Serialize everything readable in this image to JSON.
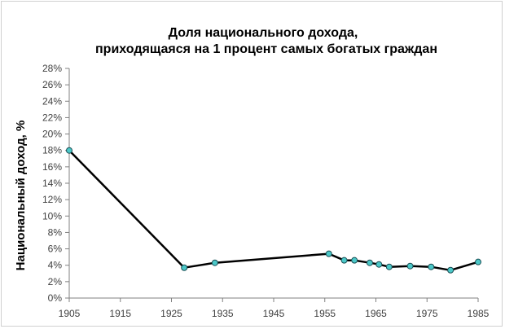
{
  "chart_data": {
    "type": "line",
    "title": [
      "Доля национального дохода,",
      "приходящаяся на 1 процент самых богатых граждан"
    ],
    "xlabel": "",
    "ylabel": "Национальный доход, %",
    "xlim": [
      1905,
      1985
    ],
    "ylim": [
      0,
      28
    ],
    "x_ticks": [
      1905,
      1915,
      1925,
      1935,
      1945,
      1955,
      1965,
      1975,
      1985
    ],
    "y_ticks": [
      0,
      2,
      4,
      6,
      8,
      10,
      12,
      14,
      16,
      18,
      20,
      22,
      24,
      26,
      28
    ],
    "y_tick_suffix": "%",
    "grid": false,
    "legend": "none",
    "series": [
      {
        "line_color": "#000000",
        "marker_color": "#4bc8c8",
        "points": [
          {
            "x": 1905,
            "y": 18.0
          },
          {
            "x": 1927.5,
            "y": 3.7
          },
          {
            "x": 1933.5,
            "y": 4.3
          },
          {
            "x": 1955.8,
            "y": 5.4
          },
          {
            "x": 1958.8,
            "y": 4.6
          },
          {
            "x": 1960.8,
            "y": 4.6
          },
          {
            "x": 1963.8,
            "y": 4.3
          },
          {
            "x": 1965.6,
            "y": 4.1
          },
          {
            "x": 1967.6,
            "y": 3.8
          },
          {
            "x": 1971.7,
            "y": 3.9
          },
          {
            "x": 1975.8,
            "y": 3.8
          },
          {
            "x": 1979.6,
            "y": 3.4
          },
          {
            "x": 1985,
            "y": 4.4
          }
        ]
      }
    ]
  }
}
